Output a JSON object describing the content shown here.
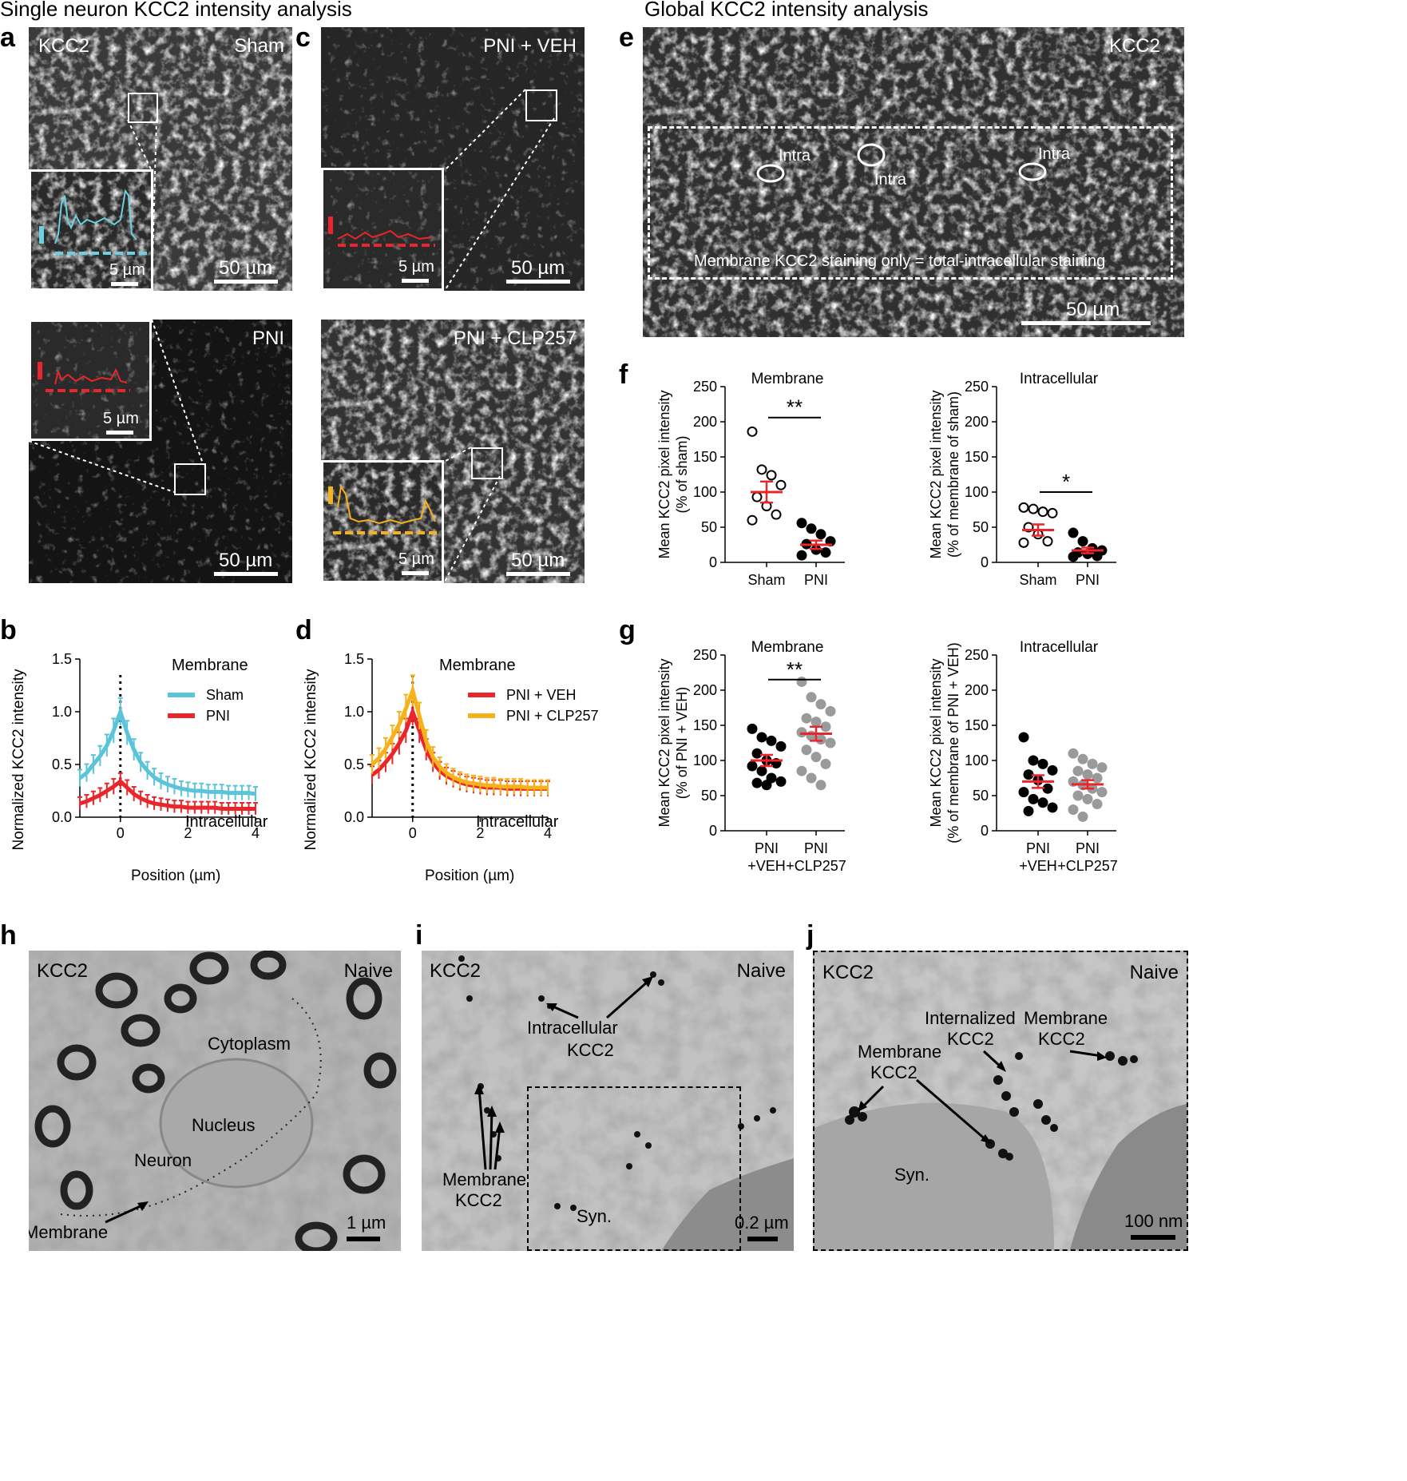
{
  "sections": {
    "left_title": "Single neuron KCC2 intensity analysis",
    "right_title": "Global KCC2 intensity analysis"
  },
  "panel_letters": [
    "a",
    "b",
    "c",
    "d",
    "e",
    "f",
    "g",
    "h",
    "i",
    "j"
  ],
  "micrographs": {
    "a_top": {
      "stain": "KCC2",
      "condition": "Sham",
      "scale_main": "50 µm",
      "scale_inset": "5 µm"
    },
    "a_bottom": {
      "condition": "PNI",
      "scale_main": "50 µm",
      "scale_inset": "5 µm"
    },
    "c_top": {
      "condition": "PNI + VEH",
      "scale_main": "50 µm",
      "scale_inset": "5 µm"
    },
    "c_bottom": {
      "condition": "PNI + CLP257",
      "scale_main": "50 µm",
      "scale_inset": "5 µm"
    },
    "e": {
      "stain": "KCC2",
      "intra_labels": [
        "Intra",
        "Intra",
        "Intra"
      ],
      "caption": "Membrane KCC2 staining only = total-intracellular staining",
      "scale": "50 µm"
    }
  },
  "profile_charts": [
    {
      "id": "b",
      "ylabel": "Normalized KCC2 intensity",
      "xlabel": "Position (µm)",
      "top_note": "Membrane",
      "bottom_note": "Intracellular",
      "yticks": [
        "0.0",
        "0.5",
        "1.0",
        "1.5"
      ],
      "xticks": [
        "0",
        "2",
        "4"
      ],
      "series": [
        {
          "name": "Sham",
          "color": "#5bc4d9"
        },
        {
          "name": "PNI",
          "color": "#e8262b"
        }
      ]
    },
    {
      "id": "d",
      "ylabel": "Normalized KCC2 intensity",
      "xlabel": "Position (µm)",
      "top_note": "Membrane",
      "bottom_note": "Intracellular",
      "yticks": [
        "0.0",
        "0.5",
        "1.0",
        "1.5"
      ],
      "xticks": [
        "0",
        "2",
        "4"
      ],
      "series": [
        {
          "name": "PNI + VEH",
          "color": "#e8262b"
        },
        {
          "name": "PNI + CLP257",
          "color": "#f5b21b"
        }
      ]
    }
  ],
  "chart_data": [
    {
      "type": "line",
      "panel": "b",
      "ylim": [
        0,
        1.5
      ],
      "xlim": [
        -1.2,
        4
      ],
      "x": [
        -1.2,
        -1.0,
        -0.8,
        -0.6,
        -0.4,
        -0.2,
        0,
        0.2,
        0.4,
        0.6,
        0.8,
        1.0,
        1.2,
        1.4,
        1.6,
        1.8,
        2.0,
        2.2,
        2.4,
        2.6,
        2.8,
        3.0,
        3.2,
        3.4,
        3.6,
        3.8,
        4.0
      ],
      "series": [
        {
          "name": "Sham",
          "values": [
            0.37,
            0.42,
            0.5,
            0.58,
            0.68,
            0.82,
            1.0,
            0.8,
            0.64,
            0.52,
            0.44,
            0.38,
            0.34,
            0.31,
            0.29,
            0.27,
            0.26,
            0.25,
            0.25,
            0.24,
            0.24,
            0.24,
            0.23,
            0.23,
            0.23,
            0.23,
            0.22
          ]
        },
        {
          "name": "PNI",
          "values": [
            0.13,
            0.15,
            0.18,
            0.21,
            0.25,
            0.29,
            0.34,
            0.28,
            0.22,
            0.18,
            0.15,
            0.13,
            0.12,
            0.11,
            0.1,
            0.1,
            0.09,
            0.09,
            0.09,
            0.09,
            0.09,
            0.08,
            0.08,
            0.08,
            0.08,
            0.08,
            0.08
          ]
        }
      ]
    },
    {
      "type": "line",
      "panel": "d",
      "ylim": [
        0,
        1.5
      ],
      "xlim": [
        -1.2,
        4
      ],
      "x": [
        -1.2,
        -1.0,
        -0.8,
        -0.6,
        -0.4,
        -0.2,
        0,
        0.2,
        0.4,
        0.6,
        0.8,
        1.0,
        1.2,
        1.4,
        1.6,
        1.8,
        2.0,
        2.2,
        2.4,
        2.6,
        2.8,
        3.0,
        3.2,
        3.4,
        3.6,
        3.8,
        4.0
      ],
      "series": [
        {
          "name": "PNI + VEH",
          "values": [
            0.4,
            0.45,
            0.52,
            0.6,
            0.7,
            0.82,
            1.0,
            0.82,
            0.64,
            0.52,
            0.44,
            0.39,
            0.36,
            0.33,
            0.31,
            0.3,
            0.29,
            0.28,
            0.28,
            0.28,
            0.27,
            0.27,
            0.27,
            0.27,
            0.27,
            0.27,
            0.27
          ]
        },
        {
          "name": "PNI + CLP257",
          "values": [
            0.5,
            0.56,
            0.65,
            0.76,
            0.88,
            1.03,
            1.2,
            0.96,
            0.72,
            0.57,
            0.48,
            0.42,
            0.38,
            0.35,
            0.33,
            0.32,
            0.31,
            0.3,
            0.3,
            0.29,
            0.29,
            0.29,
            0.29,
            0.28,
            0.28,
            0.28,
            0.28
          ]
        }
      ]
    },
    {
      "type": "scatter",
      "panel": "f-left",
      "title": "Membrane",
      "ylabel": "Mean KCC2 pixel intensity",
      "ylabel2": "(% of sham)",
      "ylim": [
        0,
        250
      ],
      "yticks": [
        "0",
        "50",
        "100",
        "150",
        "200",
        "250"
      ],
      "categories": [
        "Sham",
        "PNI"
      ],
      "significance": "**",
      "series": [
        {
          "name": "Sham",
          "values": [
            186,
            132,
            124,
            110,
            93,
            80,
            68,
            60
          ],
          "mean": 100,
          "sem": 15,
          "marker": "open"
        },
        {
          "name": "PNI",
          "values": [
            56,
            48,
            40,
            30,
            26,
            18,
            14,
            10
          ],
          "mean": 25,
          "sem": 6,
          "marker": "black"
        }
      ]
    },
    {
      "type": "scatter",
      "panel": "f-right",
      "title": "Intracellular",
      "ylabel": "Mean KCC2 pixel intensity",
      "ylabel2": "(% of membrane of sham)",
      "ylim": [
        0,
        250
      ],
      "yticks": [
        "0",
        "50",
        "100",
        "150",
        "200",
        "250"
      ],
      "categories": [
        "Sham",
        "PNI"
      ],
      "significance": "*",
      "series": [
        {
          "name": "Sham",
          "values": [
            78,
            76,
            72,
            70,
            50,
            40,
            30,
            28
          ],
          "mean": 46,
          "sem": 8,
          "marker": "open"
        },
        {
          "name": "PNI",
          "values": [
            42,
            30,
            20,
            17,
            14,
            12,
            9,
            8
          ],
          "mean": 17,
          "sem": 4,
          "marker": "black"
        }
      ]
    },
    {
      "type": "scatter",
      "panel": "g-left",
      "title": "Membrane",
      "ylabel": "Mean KCC2 pixel intensity",
      "ylabel2": "(% of PNI + VEH)",
      "ylim": [
        0,
        250
      ],
      "yticks": [
        "0",
        "50",
        "100",
        "150",
        "200",
        "250"
      ],
      "categories": [
        "PNI\n+VEH",
        "PNI\n+CLP257"
      ],
      "cat_line1": [
        "PNI",
        "PNI"
      ],
      "cat_line2": [
        "+VEH",
        "+CLP257"
      ],
      "significance": "**",
      "series": [
        {
          "name": "PNI+VEH",
          "values": [
            145,
            133,
            128,
            120,
            110,
            100,
            96,
            92,
            85,
            75,
            70,
            68,
            65
          ],
          "mean": 100,
          "sem": 8,
          "marker": "black"
        },
        {
          "name": "PNI+CLP257",
          "values": [
            212,
            190,
            180,
            170,
            160,
            155,
            148,
            140,
            135,
            130,
            125,
            115,
            105,
            95,
            85,
            75,
            65
          ],
          "mean": 138,
          "sem": 10,
          "marker": "gray"
        }
      ]
    },
    {
      "type": "scatter",
      "panel": "g-right",
      "title": "Intracellular",
      "ylabel": "Mean KCC2 pixel intensity",
      "ylabel2": "(% of membrane of PNI + VEH)",
      "ylim": [
        0,
        250
      ],
      "yticks": [
        "0",
        "50",
        "100",
        "150",
        "200",
        "250"
      ],
      "categories": [
        "PNI\n+VEH",
        "PNI\n+CLP257"
      ],
      "cat_line1": [
        "PNI",
        "PNI"
      ],
      "cat_line2": [
        "+VEH",
        "+CLP257"
      ],
      "significance": "",
      "series": [
        {
          "name": "PNI+VEH",
          "values": [
            133,
            100,
            95,
            86,
            80,
            72,
            60,
            55,
            45,
            40,
            33,
            28
          ],
          "mean": 70,
          "sem": 9,
          "marker": "black"
        },
        {
          "name": "PNI+CLP257",
          "values": [
            110,
            102,
            95,
            90,
            85,
            80,
            75,
            70,
            65,
            60,
            55,
            50,
            45,
            38,
            30,
            20
          ],
          "mean": 66,
          "sem": 6,
          "marker": "gray"
        }
      ]
    }
  ],
  "em": {
    "h": {
      "stain": "KCC2",
      "condition": "Naive",
      "labels": [
        "Cytoplasm",
        "Nucleus",
        "Neuron",
        "Membrane"
      ],
      "scale": "1 µm"
    },
    "i": {
      "stain": "KCC2",
      "condition": "Naive",
      "label_intra_1": "Intracellular",
      "label_intra_2": "KCC2",
      "label_mem_1": "Membrane",
      "label_mem_2": "KCC2",
      "label_syn": "Syn.",
      "scale": "0.2 µm"
    },
    "j": {
      "stain": "KCC2",
      "condition": "Naive",
      "label_int_1": "Internalized",
      "label_int_2": "KCC2",
      "label_mem_a1": "Membrane",
      "label_mem_a2": "KCC2",
      "label_mem_b1": "Membrane",
      "label_mem_b2": "KCC2",
      "label_syn": "Syn.",
      "scale": "100 nm"
    }
  }
}
